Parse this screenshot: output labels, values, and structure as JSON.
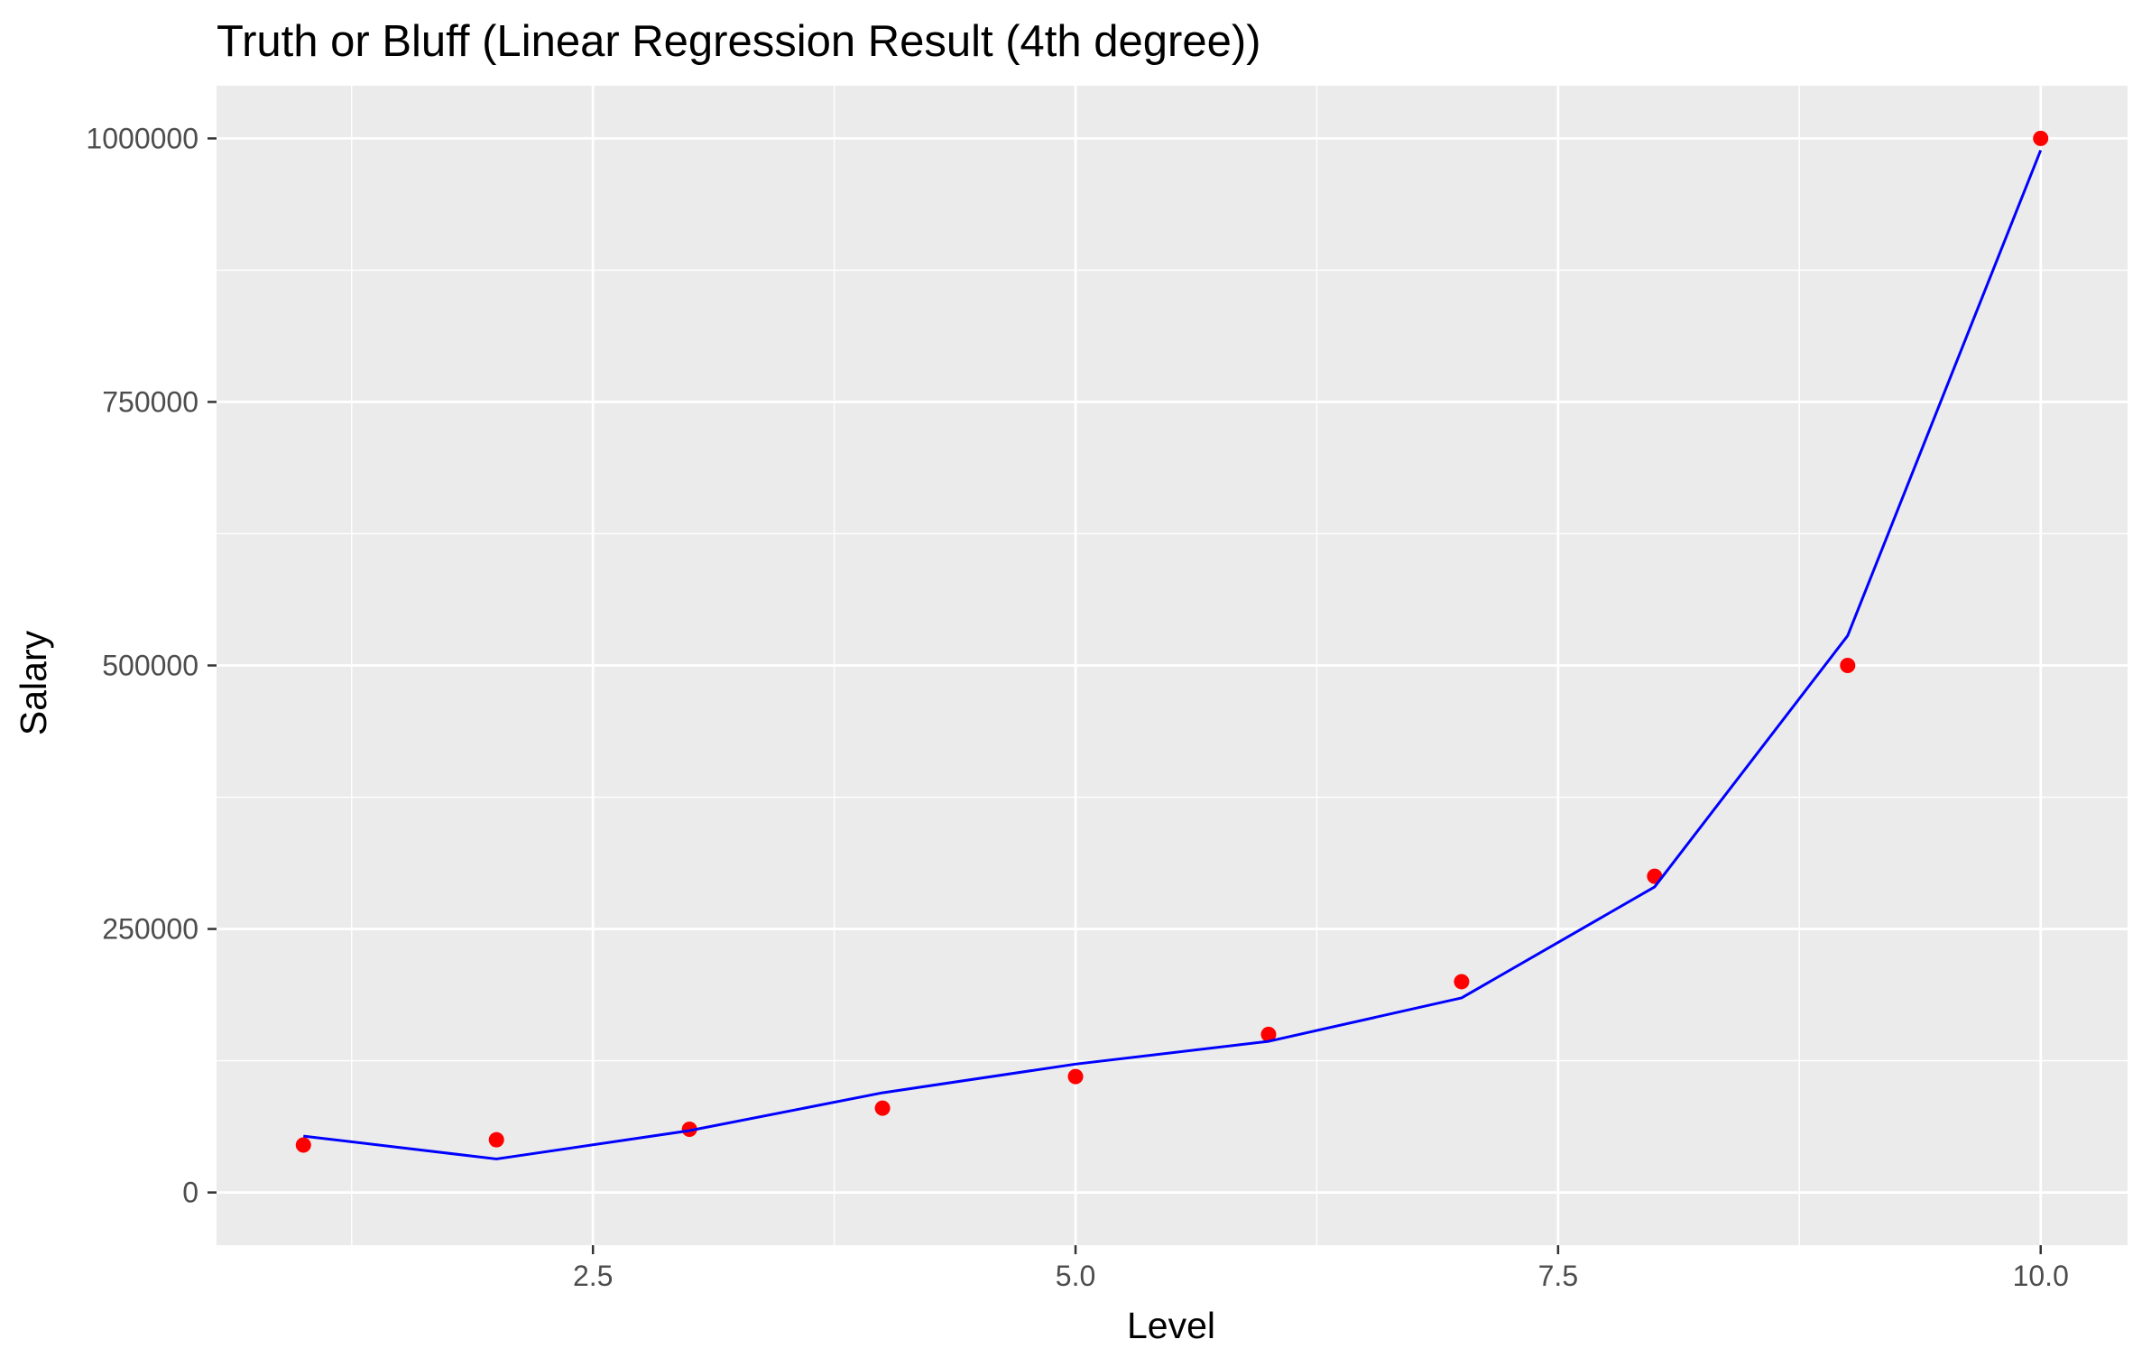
{
  "chart_data": {
    "type": "line",
    "title": "Truth or Bluff (Linear Regression Result (4th degree))",
    "xlabel": "Level",
    "ylabel": "Salary",
    "xlim": [
      0.55,
      10.45
    ],
    "ylim": [
      -50000,
      1050000
    ],
    "x_ticks": [
      2.5,
      5.0,
      7.5,
      10.0
    ],
    "x_tick_labels": [
      "2.5",
      "5.0",
      "7.5",
      "10.0"
    ],
    "x_minor_ticks": [
      1.25,
      3.75,
      6.25,
      8.75
    ],
    "y_ticks": [
      0,
      250000,
      500000,
      750000,
      1000000
    ],
    "y_tick_labels": [
      "0",
      "250000",
      "500000",
      "750000",
      "1000000"
    ],
    "y_minor_ticks": [
      125000,
      375000,
      625000,
      875000
    ],
    "grid": true,
    "panel_background": "#ebebeb",
    "grid_color": "#ffffff",
    "series": [
      {
        "kind": "scatter",
        "color": "#ff0000",
        "x": [
          1,
          2,
          3,
          4,
          5,
          6,
          7,
          8,
          9,
          10
        ],
        "y": [
          45000,
          50000,
          60000,
          80000,
          110000,
          150000,
          200000,
          300000,
          500000,
          1000000
        ]
      },
      {
        "kind": "line",
        "color": "#0000ff",
        "x": [
          1,
          2,
          3,
          4,
          5,
          6,
          7,
          8,
          9,
          10
        ],
        "y": [
          53500,
          31800,
          58700,
          94600,
          121800,
          143400,
          184600,
          289900,
          528200,
          988800
        ]
      }
    ]
  }
}
